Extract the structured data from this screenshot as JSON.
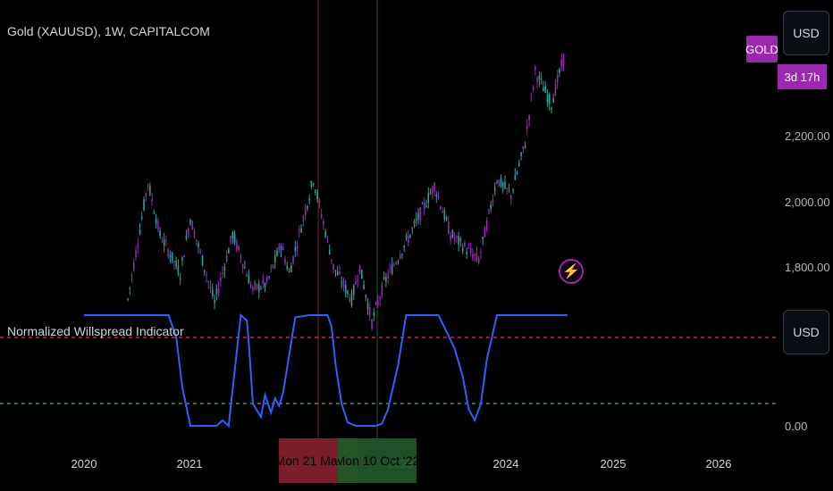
{
  "header": {
    "symbol_title": "Gold (XAUUSD), 1W, CAPITALCOM"
  },
  "indicator": {
    "title": "Normalized Willspread Indicator"
  },
  "price_scale": {
    "currency": "USD",
    "labels": [
      "2,200.00",
      "2,000.00",
      "1,800.00"
    ],
    "symbol_badge": "GOLD",
    "countdown": "3d 17h"
  },
  "indicator_scale": {
    "currency": "USD",
    "labels": [
      "0.00"
    ]
  },
  "time_axis": {
    "years": [
      "2020",
      "2021",
      "2022",
      "2023",
      "2024",
      "2025",
      "2026"
    ],
    "cursor_labels": [
      "Mon 21 Mar '22",
      "Mon 10 Oct '22"
    ]
  },
  "colors": {
    "background": "#000000",
    "up_candle": "#26a69a",
    "down_candle": "#9c27b0",
    "indicator_line": "#2962ff",
    "upper_level": "#f23645",
    "lower_level": "#4caf50",
    "badge": "#9c27b0",
    "cursor_red": "#7b1e2b",
    "cursor_green": "#1f5a2a"
  },
  "icons": {
    "alert": "lightning-bolt-icon"
  },
  "chart_data": [
    {
      "type": "candlestick",
      "title": "Gold (XAUUSD), 1W, CAPITALCOM",
      "x_range": [
        "2020-01-01",
        "2026-06-01"
      ],
      "ylim": [
        1620,
        2480
      ],
      "candle_color_rule": "purple when close below open, teal when above",
      "price_trace": [
        [
          "2020-06-01",
          1700
        ],
        [
          "2020-08-10",
          2060
        ],
        [
          "2020-09-20",
          1900
        ],
        [
          "2020-11-30",
          1780
        ],
        [
          "2021-01-04",
          1950
        ],
        [
          "2021-03-29",
          1690
        ],
        [
          "2021-05-31",
          1900
        ],
        [
          "2021-08-09",
          1730
        ],
        [
          "2021-09-27",
          1750
        ],
        [
          "2021-11-15",
          1870
        ],
        [
          "2021-12-13",
          1780
        ],
        [
          "2022-03-07",
          2070
        ],
        [
          "2022-05-16",
          1800
        ],
        [
          "2022-07-18",
          1700
        ],
        [
          "2022-08-15",
          1800
        ],
        [
          "2022-09-26",
          1630
        ],
        [
          "2022-11-07",
          1750
        ],
        [
          "2023-02-06",
          1900
        ],
        [
          "2023-05-01",
          2050
        ],
        [
          "2023-06-26",
          1900
        ],
        [
          "2023-10-02",
          1820
        ],
        [
          "2023-12-04",
          2070
        ],
        [
          "2024-01-22",
          2020
        ],
        [
          "2024-03-11",
          2180
        ],
        [
          "2024-04-15",
          2400
        ],
        [
          "2024-06-10",
          2300
        ],
        [
          "2024-07-22",
          2440
        ]
      ]
    },
    {
      "type": "line",
      "title": "Normalized Willspread Indicator",
      "ylim": [
        0,
        1
      ],
      "levels": [
        0.8,
        0.2
      ],
      "series": [
        {
          "x": [
            "2020-01-01",
            "2020-10-20",
            "2020-11-16",
            "2020-12-07",
            "2021-01-04",
            "2021-04-05",
            "2021-04-26",
            "2021-05-17",
            "2021-06-07",
            "2021-06-28",
            "2021-07-19",
            "2021-07-26",
            "2021-08-09",
            "2021-09-06",
            "2021-09-20",
            "2021-10-11",
            "2021-10-25",
            "2021-11-08",
            "2021-11-22",
            "2022-01-03",
            "2022-02-21",
            "2022-03-21",
            "2022-04-25",
            "2022-05-09",
            "2022-05-23",
            "2022-06-13",
            "2022-07-04",
            "2022-08-01",
            "2022-09-05",
            "2022-10-10",
            "2022-10-31",
            "2022-11-21",
            "2022-12-26",
            "2023-01-23",
            "2023-05-15",
            "2023-06-12",
            "2023-07-10",
            "2023-08-07",
            "2023-08-28",
            "2023-09-18",
            "2023-10-09",
            "2023-10-30",
            "2023-12-04",
            "2024-08-05"
          ],
          "values": [
            1.0,
            1.0,
            0.8,
            0.35,
            0.0,
            0.0,
            0.05,
            0.0,
            0.5,
            1.0,
            0.95,
            0.75,
            0.2,
            0.08,
            0.28,
            0.12,
            0.25,
            0.18,
            0.3,
            0.98,
            1.0,
            1.0,
            1.0,
            0.9,
            0.55,
            0.2,
            0.03,
            0.0,
            0.0,
            0.0,
            0.02,
            0.15,
            0.55,
            1.0,
            1.0,
            0.85,
            0.7,
            0.45,
            0.15,
            0.05,
            0.2,
            0.6,
            1.0,
            1.0
          ]
        }
      ]
    }
  ]
}
